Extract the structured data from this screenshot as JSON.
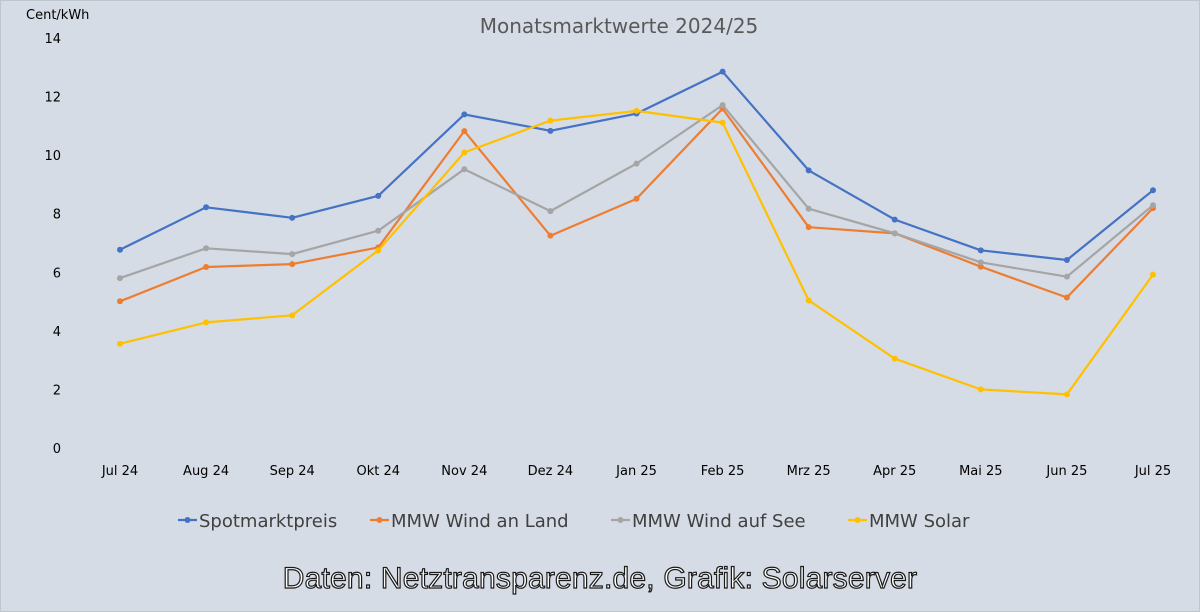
{
  "chart_data": {
    "type": "line",
    "title": "Monatsmarktwerte 2024/25",
    "ylabel": "Cent/kWh",
    "xlabel": "",
    "ylim": [
      0,
      14
    ],
    "yticks": [
      0,
      2,
      4,
      6,
      8,
      10,
      12,
      14
    ],
    "grid": false,
    "legend": "bottom",
    "categories": [
      "Jul 24",
      "Aug 24",
      "Sep 24",
      "Okt 24",
      "Nov 24",
      "Dez 24",
      "Jan 25",
      "Feb 25",
      "Mrz 25",
      "Apr 25",
      "Mai 25",
      "Jun 25",
      "Jul 25"
    ],
    "series": [
      {
        "name": "Spotmarktpreis",
        "color": "#4472c4",
        "values": [
          6.77,
          8.22,
          7.86,
          8.61,
          11.39,
          10.83,
          11.42,
          12.85,
          9.48,
          7.8,
          6.75,
          6.42,
          8.8
        ]
      },
      {
        "name": "MMW Wind an Land",
        "color": "#ed7d31",
        "values": [
          5.01,
          6.18,
          6.28,
          6.85,
          10.82,
          7.25,
          8.51,
          11.59,
          7.54,
          7.33,
          6.19,
          5.14,
          8.19
        ]
      },
      {
        "name": "MMW Wind auf See",
        "color": "#a5a5a5",
        "values": [
          5.8,
          6.82,
          6.62,
          7.42,
          9.52,
          8.09,
          9.71,
          11.71,
          8.17,
          7.33,
          6.34,
          5.85,
          8.29
        ]
      },
      {
        "name": "MMW Solar",
        "color": "#ffc000",
        "values": [
          3.56,
          4.29,
          4.53,
          6.75,
          10.09,
          11.18,
          11.51,
          11.11,
          5.04,
          3.05,
          2.0,
          1.83,
          5.92
        ]
      }
    ]
  },
  "credit": "Daten: Netztransparenz.de, Grafik: Solarserver"
}
